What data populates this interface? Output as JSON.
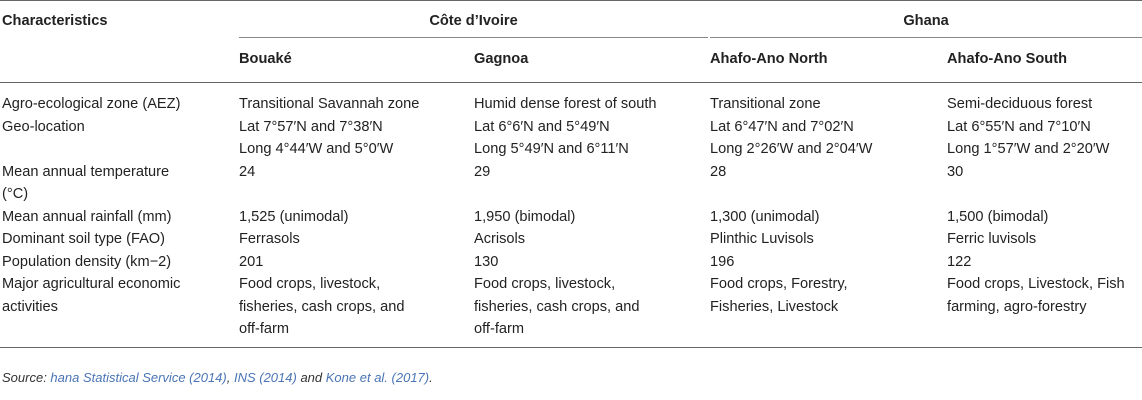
{
  "headers": {
    "characteristics": "Characteristics",
    "country_1": "Côte d’Ivoire",
    "country_2": "Ghana",
    "sites": [
      "Bouaké",
      "Gagnoa",
      "Ahafo-Ano North",
      "Ahafo-Ano South"
    ]
  },
  "rows": [
    {
      "label": [
        "Agro-ecological zone (AEZ)"
      ],
      "cells": [
        [
          "Transitional Savannah zone"
        ],
        [
          "Humid dense forest of south"
        ],
        [
          "Transitional zone"
        ],
        [
          "Semi-deciduous forest"
        ]
      ]
    },
    {
      "label": [
        "Geo-location"
      ],
      "cells": [
        [
          "Lat 7°57′N and 7°38′N",
          "Long 4°44′W and 5°0′W"
        ],
        [
          "Lat 6°6′N and 5°49′N",
          "Long 5°49′N and 6°11′N"
        ],
        [
          "Lat 6°47′N and 7°02′N",
          "Long 2°26′W and 2°04′W"
        ],
        [
          "Lat 6°55′N and 7°10′N",
          "Long 1°57′W and 2°20′W"
        ]
      ]
    },
    {
      "label": [
        "Mean annual temperature",
        "(°C)"
      ],
      "cells": [
        [
          "24"
        ],
        [
          "29"
        ],
        [
          "28"
        ],
        [
          "30"
        ]
      ]
    },
    {
      "label": [
        "Mean annual rainfall (mm)"
      ],
      "cells": [
        [
          "1,525 (unimodal)"
        ],
        [
          "1,950 (bimodal)"
        ],
        [
          "1,300 (unimodal)"
        ],
        [
          "1,500 (bimodal)"
        ]
      ]
    },
    {
      "label": [
        "Dominant soil type (FAO)"
      ],
      "cells": [
        [
          "Ferrasols"
        ],
        [
          "Acrisols"
        ],
        [
          "Plinthic Luvisols"
        ],
        [
          "Ferric luvisols"
        ]
      ]
    },
    {
      "label": [
        "Population density (km−2)"
      ],
      "cells": [
        [
          "201"
        ],
        [
          "130"
        ],
        [
          "196"
        ],
        [
          "122"
        ]
      ]
    },
    {
      "label": [
        "Major agricultural economic",
        "activities"
      ],
      "cells": [
        [
          "Food crops, livestock,",
          "fisheries, cash crops, and",
          "off-farm"
        ],
        [
          "Food crops, livestock,",
          "fisheries, cash crops, and",
          "off-farm"
        ],
        [
          "Food crops, Forestry,",
          "Fisheries, Livestock"
        ],
        [
          "Food crops, Livestock, Fish",
          "farming, agro-forestry"
        ]
      ]
    }
  ],
  "source": {
    "prefix": "Source: ",
    "ref_1": "hana Statistical Service (2014)",
    "sep_1": ", ",
    "ref_2": "INS (2014)",
    "sep_2": " and ",
    "ref_3": "Kone et al. (2017)",
    "suffix": "."
  }
}
